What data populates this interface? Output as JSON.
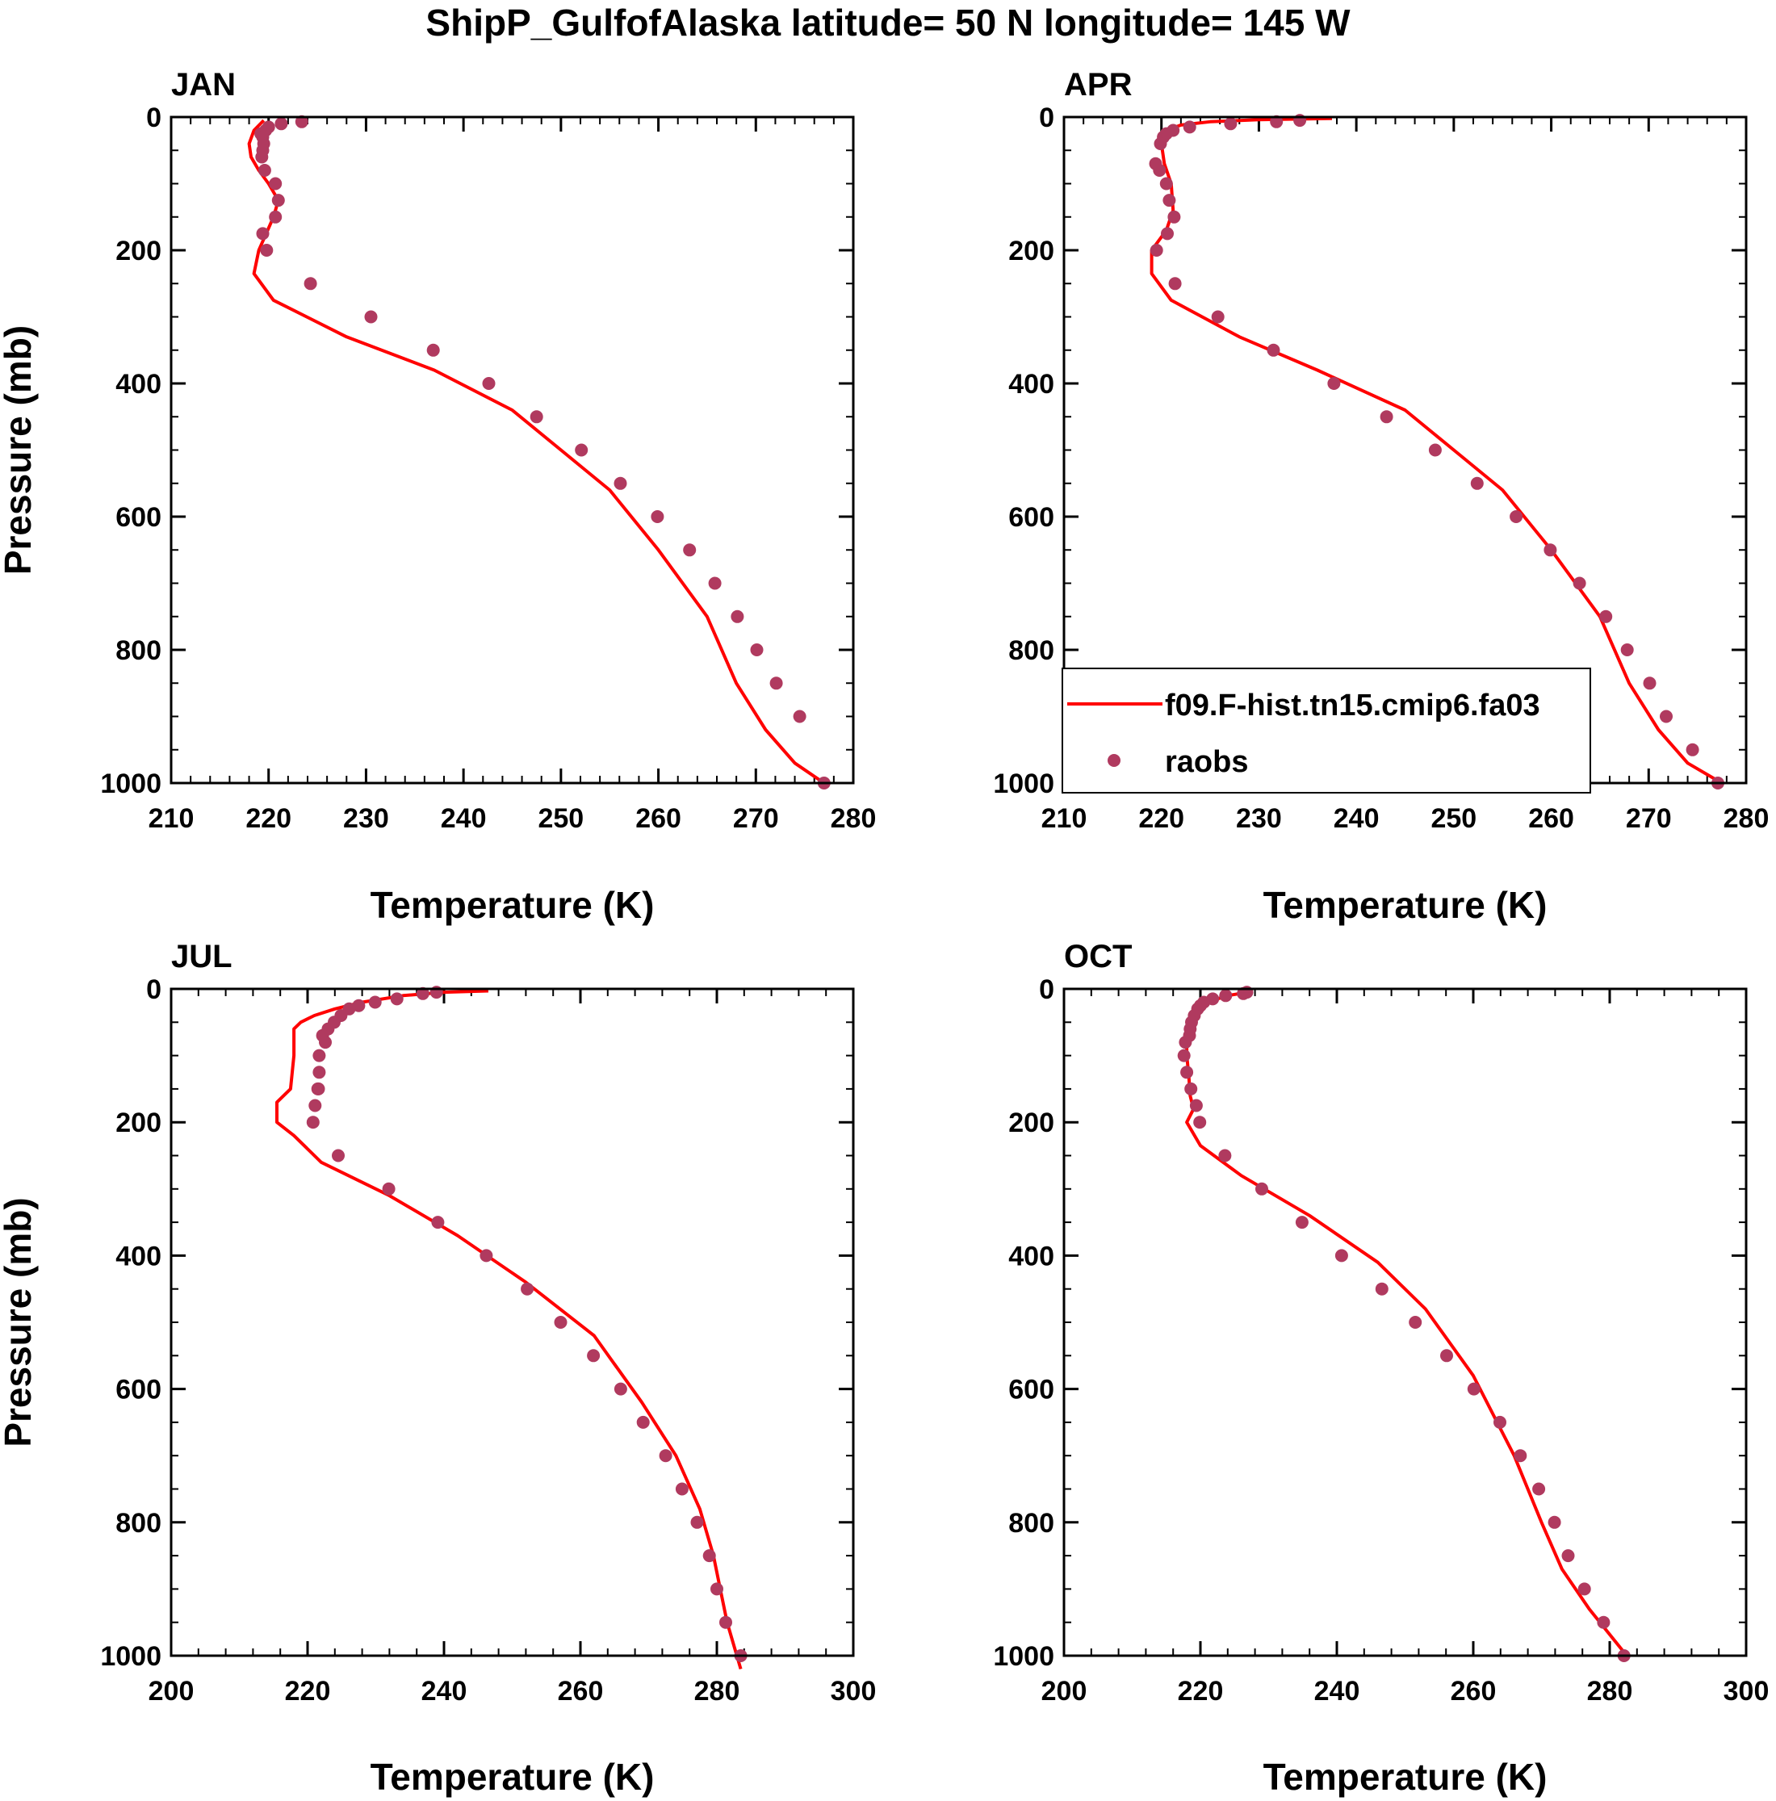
{
  "figure": {
    "title": "ShipP_GulfofAlaska  latitude= 50 N longitude= 145 W"
  },
  "colors": {
    "model_line": "#ff0000",
    "obs_marker": "#b03a5f",
    "axis": "#000000"
  },
  "legend": {
    "model_label": "f09.F-hist.tn15.cmip6.fa03",
    "obs_label": "raobs"
  },
  "chart_data": [
    {
      "type": "line",
      "panel": "JAN",
      "xlabel": "Temperature (K)",
      "ylabel": "Pressure (mb)",
      "xlim": [
        210,
        280
      ],
      "ylim": [
        1000,
        0
      ],
      "xticks": [
        210,
        220,
        230,
        240,
        250,
        260,
        270,
        280
      ],
      "yticks": [
        0,
        200,
        400,
        600,
        800,
        1000
      ],
      "series": [
        {
          "name": "f09.F-hist.tn15.cmip6.fa03",
          "style": "line",
          "x": [
            219.5,
            218.5,
            218,
            218.2,
            219,
            220,
            221,
            220.5,
            219,
            218.5,
            220.5,
            228,
            237,
            245,
            250,
            255,
            260,
            265,
            268,
            271,
            274,
            277.5
          ],
          "y": [
            5,
            20,
            40,
            60,
            80,
            100,
            125,
            150,
            200,
            235,
            275,
            330,
            380,
            440,
            500,
            560,
            650,
            750,
            850,
            920,
            970,
            1005
          ]
        },
        {
          "name": "raobs",
          "style": "marker",
          "x": [
            223.4,
            221.3,
            220,
            219.7,
            219.2,
            219.4,
            219.5,
            219.4,
            219.3,
            219.6,
            220.7,
            221,
            220.7,
            219.4,
            219.8,
            224.3,
            230.5,
            236.9,
            242.6,
            247.5,
            252.1,
            256.1,
            259.9,
            263.2,
            265.8,
            268.1,
            270.1,
            272.1,
            274.5,
            277
          ],
          "y": [
            7,
            10,
            15,
            20,
            25,
            30,
            40,
            50,
            60,
            80,
            100,
            125,
            150,
            175,
            200,
            250,
            300,
            350,
            400,
            450,
            500,
            550,
            600,
            650,
            700,
            750,
            800,
            850,
            900,
            1000
          ]
        }
      ]
    },
    {
      "type": "line",
      "panel": "APR",
      "xlabel": "Temperature (K)",
      "ylabel": "",
      "xlim": [
        210,
        280
      ],
      "ylim": [
        1000,
        0
      ],
      "xticks": [
        210,
        220,
        230,
        240,
        250,
        260,
        270,
        280
      ],
      "yticks": [
        0,
        200,
        400,
        600,
        800,
        1000
      ],
      "series": [
        {
          "name": "f09.F-hist.tn15.cmip6.fa03",
          "style": "line",
          "x": [
            237.5,
            230,
            225,
            222,
            220.5,
            220,
            220.3,
            221,
            221.2,
            220.5,
            219,
            219,
            221,
            228,
            236,
            245,
            250,
            255,
            260,
            265,
            268,
            271,
            274,
            277.5
          ],
          "y": [
            2,
            4,
            7,
            12,
            20,
            40,
            70,
            100,
            140,
            170,
            200,
            235,
            275,
            330,
            380,
            440,
            500,
            560,
            650,
            750,
            850,
            920,
            970,
            1000
          ]
        },
        {
          "name": "raobs",
          "style": "marker",
          "x": [
            234.2,
            231.8,
            227.1,
            222.9,
            221.2,
            220.5,
            220.2,
            219.9,
            219.4,
            219.8,
            220.5,
            220.8,
            221.3,
            220.6,
            219.5,
            221.4,
            225.8,
            231.5,
            237.7,
            243.1,
            248.1,
            252.4,
            256.4,
            259.9,
            262.9,
            265.6,
            267.8,
            270.1,
            271.8,
            274.5,
            277.1
          ],
          "y": [
            5,
            7,
            10,
            15,
            20,
            25,
            30,
            40,
            70,
            80,
            100,
            125,
            150,
            175,
            200,
            250,
            300,
            350,
            400,
            450,
            500,
            550,
            600,
            650,
            700,
            750,
            800,
            850,
            900,
            950,
            1000
          ]
        }
      ]
    },
    {
      "type": "line",
      "panel": "JUL",
      "xlabel": "Temperature (K)",
      "ylabel": "Pressure (mb)",
      "xlim": [
        200,
        300
      ],
      "ylim": [
        1000,
        0
      ],
      "xticks": [
        200,
        220,
        240,
        260,
        280,
        300
      ],
      "yticks": [
        0,
        200,
        400,
        600,
        800,
        1000
      ],
      "series": [
        {
          "name": "f09.F-hist.tn15.cmip6.fa03",
          "style": "line",
          "x": [
            246.5,
            240,
            234,
            228,
            224,
            221,
            219,
            218,
            218,
            217.5,
            215.5,
            215.5,
            218,
            222,
            232,
            242,
            252,
            262,
            269,
            274,
            277.5,
            279.5,
            280.5,
            281.5,
            283.5
          ],
          "y": [
            3,
            5,
            10,
            20,
            30,
            40,
            50,
            60,
            100,
            150,
            170,
            200,
            220,
            260,
            310,
            370,
            440,
            520,
            620,
            700,
            780,
            850,
            900,
            950,
            1020
          ]
        },
        {
          "name": "raobs",
          "style": "marker",
          "x": [
            238.9,
            236.9,
            233.1,
            229.9,
            227.5,
            226.1,
            224.9,
            223.9,
            223,
            222.2,
            222.6,
            221.7,
            221.7,
            221.6,
            221.5,
            221.1,
            220.8,
            224.5,
            231.9,
            239.1,
            246.2,
            252.2,
            257.1,
            261.9,
            265.9,
            269.2,
            272.5,
            274.9,
            277.1,
            278.9,
            280,
            281.3,
            283.5
          ],
          "y": [
            5,
            7,
            15,
            20,
            25,
            30,
            40,
            50,
            60,
            70,
            80,
            100,
            125,
            150,
            150,
            175,
            200,
            250,
            300,
            350,
            400,
            450,
            500,
            550,
            600,
            650,
            700,
            750,
            800,
            850,
            900,
            950,
            1000
          ]
        }
      ]
    },
    {
      "type": "line",
      "panel": "OCT",
      "xlabel": "Temperature (K)",
      "ylabel": "",
      "xlim": [
        200,
        300
      ],
      "ylim": [
        1000,
        0
      ],
      "xticks": [
        200,
        220,
        240,
        260,
        280,
        300
      ],
      "yticks": [
        0,
        200,
        400,
        600,
        800,
        1000
      ],
      "series": [
        {
          "name": "f09.F-hist.tn15.cmip6.fa03",
          "style": "line",
          "x": [
            227,
            224,
            221,
            219.5,
            218.5,
            218,
            218,
            218.3,
            218.5,
            219,
            218,
            220,
            226,
            236,
            246,
            253,
            260,
            266,
            270,
            273,
            277,
            282.5
          ],
          "y": [
            5,
            10,
            20,
            30,
            40,
            60,
            100,
            130,
            160,
            180,
            200,
            235,
            280,
            340,
            410,
            480,
            580,
            700,
            800,
            870,
            930,
            1000
          ]
        },
        {
          "name": "raobs",
          "style": "marker",
          "x": [
            226.8,
            226.3,
            223.7,
            221.8,
            220.5,
            220,
            219.6,
            219.1,
            218.7,
            218.5,
            218.4,
            217.8,
            217.6,
            218,
            218.6,
            219.4,
            219.9,
            223.6,
            229,
            234.9,
            240.7,
            246.6,
            251.5,
            256.1,
            260.1,
            263.9,
            266.9,
            269.6,
            271.9,
            273.9,
            276.3,
            279.1,
            282.1
          ],
          "y": [
            5,
            7,
            10,
            15,
            20,
            25,
            30,
            40,
            50,
            60,
            70,
            80,
            100,
            125,
            150,
            175,
            200,
            250,
            300,
            350,
            400,
            450,
            500,
            550,
            600,
            650,
            700,
            750,
            800,
            850,
            900,
            950,
            1000
          ]
        }
      ]
    }
  ]
}
